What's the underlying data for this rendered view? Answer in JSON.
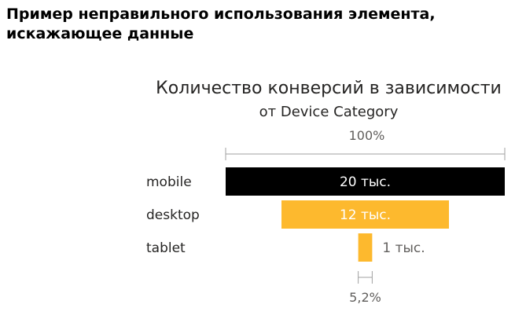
{
  "heading": {
    "line1": "Пример неправильного использования элемента,",
    "line2": "искажающее данные"
  },
  "chart_data": {
    "type": "bar",
    "title": "Количество конверсий в зависимости",
    "subtitle": "от Device Category",
    "categories": [
      "mobile",
      "desktop",
      "tablet"
    ],
    "values": [
      20000,
      12000,
      1000
    ],
    "value_labels": [
      "20 тыс.",
      "12 тыс.",
      "1 тыс."
    ],
    "colors": [
      "#000000",
      "#fdb92e",
      "#fdb92e"
    ],
    "label_colors": [
      "#ffffff",
      "#ffffff",
      "#605e5c"
    ],
    "top_percent_label": "100%",
    "bottom_percent_label": "5,2%"
  }
}
